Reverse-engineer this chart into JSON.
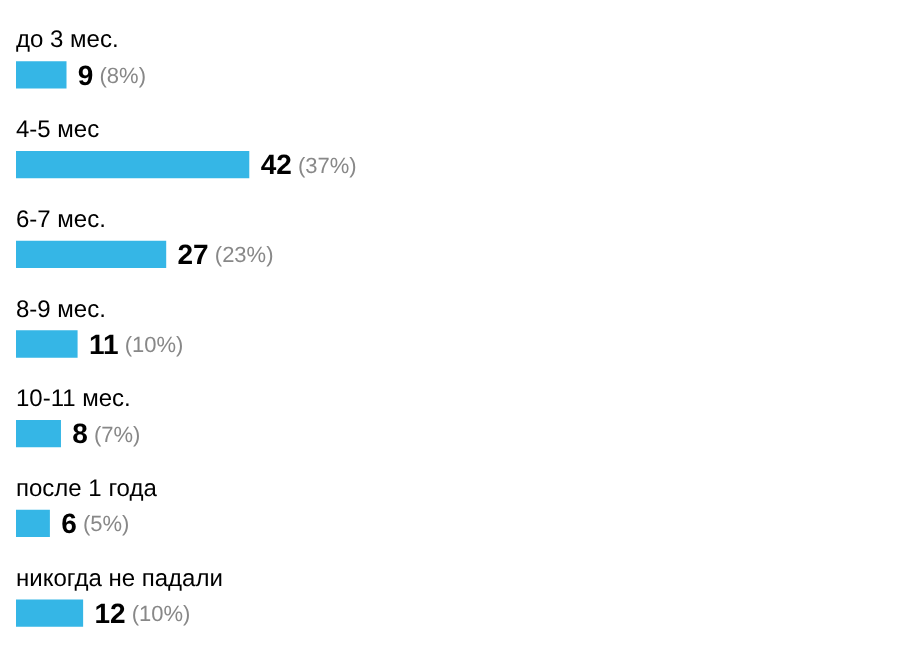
{
  "chart_data": {
    "type": "bar",
    "orientation": "horizontal",
    "categories": [
      "до 3 мес.",
      "4-5 мес",
      "6-7 мес.",
      "8-9 мес.",
      "10-11 мес.",
      "после 1 года",
      "никогда не падали"
    ],
    "values": [
      9,
      42,
      27,
      11,
      8,
      6,
      12
    ],
    "value_labels": [
      "9 (8%)",
      "42 (37%)",
      "27 (23%)",
      "11 (10%)",
      "8 (7%)",
      "6 (5%)",
      "12 (10%)"
    ],
    "color": "#35b6e6"
  }
}
